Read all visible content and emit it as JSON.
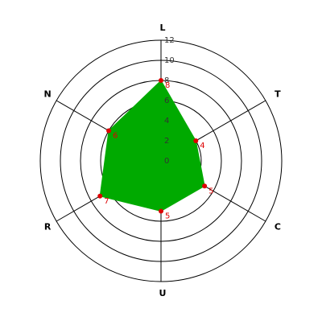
{
  "chart_data": {
    "type": "radar",
    "categories": [
      "L",
      "T",
      "C",
      "U",
      "R",
      "N"
    ],
    "values": [
      8,
      4,
      5,
      5,
      7,
      6
    ],
    "color": "#00aa00",
    "marker_color": "#dd0000",
    "ylim": [
      0,
      12
    ],
    "yticks": [
      0,
      2,
      4,
      6,
      8,
      10,
      12
    ],
    "grid": true
  }
}
